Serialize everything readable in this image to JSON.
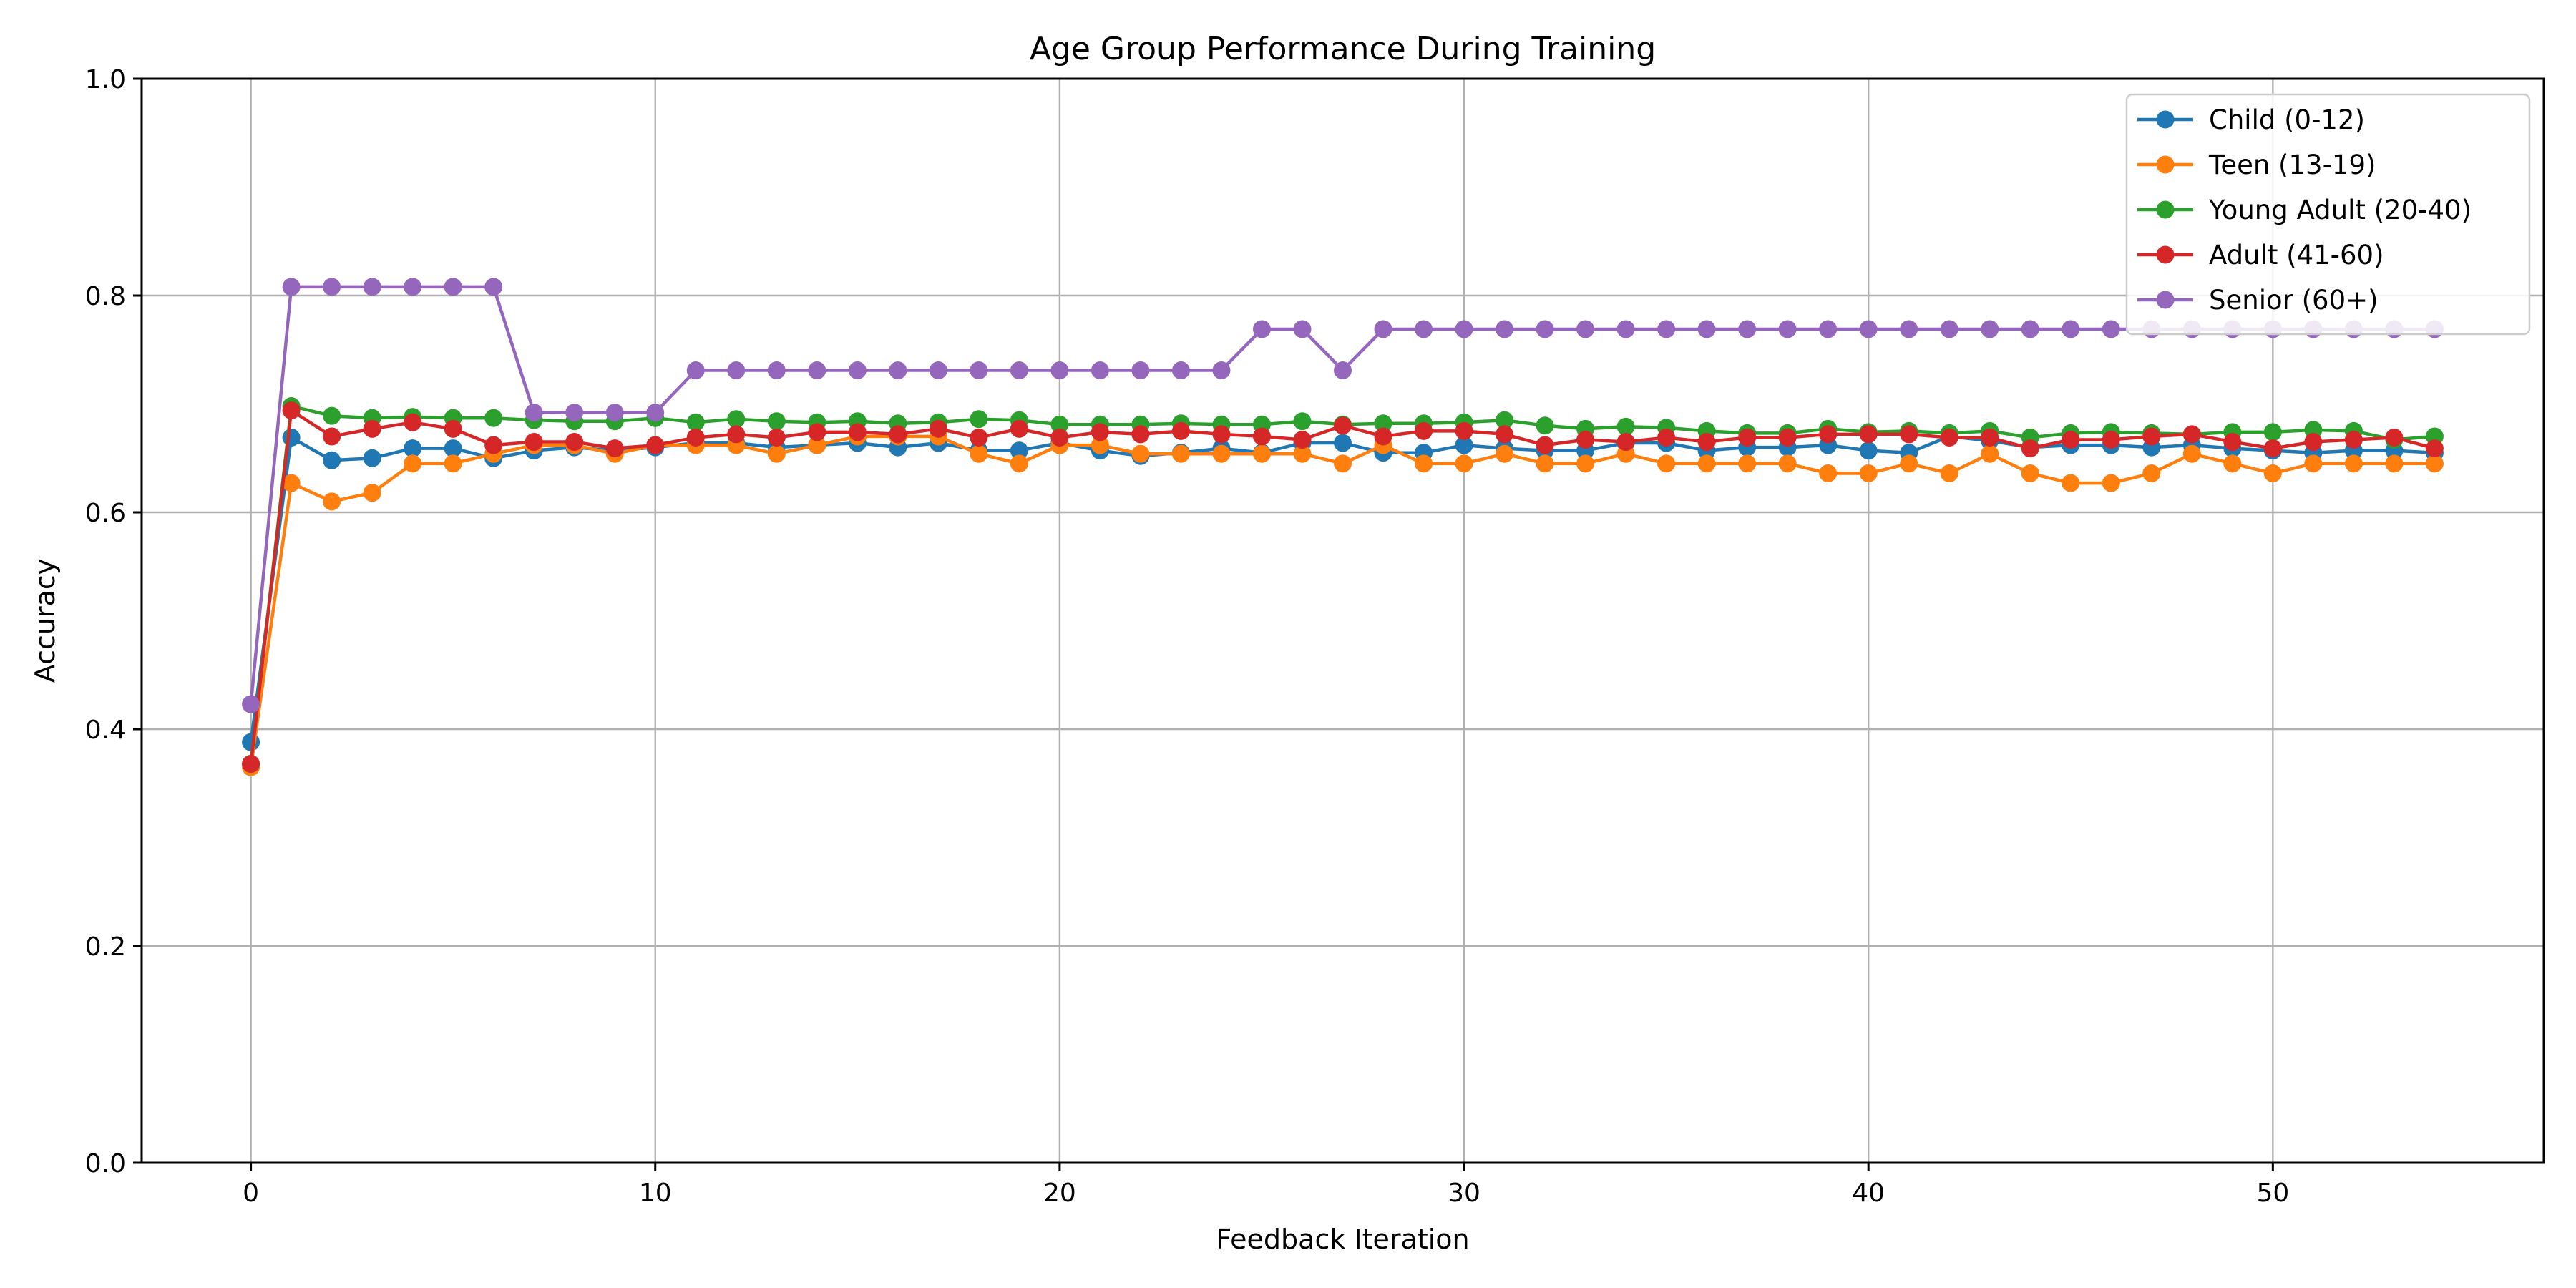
{
  "chart_data": {
    "type": "line",
    "title": "Age Group Performance During Training",
    "xlabel": "Feedback Iteration",
    "ylabel": "Accuracy",
    "xlim": [
      -2.7,
      56.7
    ],
    "ylim": [
      0,
      1.0
    ],
    "xticks": [
      0,
      10,
      20,
      30,
      40,
      50
    ],
    "yticks": [
      0.0,
      0.2,
      0.4,
      0.6,
      0.8,
      1.0
    ],
    "grid": true,
    "legend_position": "top-right",
    "markers": "circle",
    "x": [
      0,
      1,
      2,
      3,
      4,
      5,
      6,
      7,
      8,
      9,
      10,
      11,
      12,
      13,
      14,
      15,
      16,
      17,
      18,
      19,
      20,
      21,
      22,
      23,
      24,
      25,
      26,
      27,
      28,
      29,
      30,
      31,
      32,
      33,
      34,
      35,
      36,
      37,
      38,
      39,
      40,
      41,
      42,
      43,
      44,
      45,
      46,
      47,
      48,
      49,
      50,
      51,
      52,
      53,
      54
    ],
    "series": [
      {
        "name": "Child (0-12)",
        "color": "#1f77b4",
        "values": [
          0.388,
          0.669,
          0.648,
          0.65,
          0.659,
          0.659,
          0.65,
          0.657,
          0.66,
          0.657,
          0.66,
          0.664,
          0.664,
          0.66,
          0.662,
          0.664,
          0.66,
          0.664,
          0.657,
          0.657,
          0.664,
          0.657,
          0.652,
          0.655,
          0.659,
          0.655,
          0.664,
          0.664,
          0.655,
          0.655,
          0.662,
          0.659,
          0.657,
          0.657,
          0.664,
          0.664,
          0.657,
          0.66,
          0.66,
          0.662,
          0.657,
          0.655,
          0.67,
          0.666,
          0.66,
          0.662,
          0.662,
          0.66,
          0.662,
          0.659,
          0.657,
          0.655,
          0.657,
          0.657,
          0.655
        ]
      },
      {
        "name": "Teen (13-19)",
        "color": "#ff7f0e",
        "values": [
          0.365,
          0.627,
          0.61,
          0.618,
          0.645,
          0.645,
          0.654,
          0.662,
          0.662,
          0.654,
          0.662,
          0.662,
          0.662,
          0.654,
          0.662,
          0.67,
          0.67,
          0.67,
          0.654,
          0.645,
          0.662,
          0.662,
          0.654,
          0.654,
          0.654,
          0.654,
          0.654,
          0.645,
          0.662,
          0.645,
          0.645,
          0.654,
          0.645,
          0.645,
          0.654,
          0.645,
          0.645,
          0.645,
          0.645,
          0.636,
          0.636,
          0.645,
          0.636,
          0.654,
          0.636,
          0.627,
          0.627,
          0.636,
          0.654,
          0.645,
          0.636,
          0.645,
          0.645,
          0.645,
          0.645
        ]
      },
      {
        "name": "Young Adult (20-40)",
        "color": "#2ca02c",
        "values": [
          0.368,
          0.698,
          0.689,
          0.687,
          0.688,
          0.687,
          0.687,
          0.685,
          0.684,
          0.684,
          0.687,
          0.683,
          0.686,
          0.684,
          0.683,
          0.684,
          0.682,
          0.683,
          0.686,
          0.685,
          0.681,
          0.681,
          0.681,
          0.682,
          0.681,
          0.681,
          0.684,
          0.681,
          0.682,
          0.682,
          0.683,
          0.685,
          0.68,
          0.677,
          0.679,
          0.678,
          0.675,
          0.673,
          0.673,
          0.677,
          0.674,
          0.675,
          0.673,
          0.675,
          0.669,
          0.673,
          0.674,
          0.673,
          0.672,
          0.674,
          0.674,
          0.676,
          0.675,
          0.667,
          0.67
        ]
      },
      {
        "name": "Adult (41-60)",
        "color": "#d62728",
        "values": [
          0.368,
          0.694,
          0.67,
          0.677,
          0.683,
          0.677,
          0.662,
          0.665,
          0.665,
          0.659,
          0.662,
          0.669,
          0.672,
          0.669,
          0.674,
          0.674,
          0.672,
          0.677,
          0.669,
          0.677,
          0.669,
          0.674,
          0.672,
          0.675,
          0.672,
          0.67,
          0.667,
          0.68,
          0.67,
          0.675,
          0.675,
          0.672,
          0.662,
          0.667,
          0.665,
          0.669,
          0.665,
          0.669,
          0.669,
          0.672,
          0.672,
          0.672,
          0.669,
          0.669,
          0.659,
          0.667,
          0.667,
          0.67,
          0.672,
          0.665,
          0.659,
          0.665,
          0.667,
          0.669,
          0.659
        ]
      },
      {
        "name": "Senior (60+)",
        "color": "#9467bd",
        "values": [
          0.423,
          0.808,
          0.808,
          0.808,
          0.808,
          0.808,
          0.808,
          0.692,
          0.692,
          0.692,
          0.692,
          0.731,
          0.731,
          0.731,
          0.731,
          0.731,
          0.731,
          0.731,
          0.731,
          0.731,
          0.731,
          0.731,
          0.731,
          0.731,
          0.731,
          0.769,
          0.769,
          0.731,
          0.769,
          0.769,
          0.769,
          0.769,
          0.769,
          0.769,
          0.769,
          0.769,
          0.769,
          0.769,
          0.769,
          0.769,
          0.769,
          0.769,
          0.769,
          0.769,
          0.769,
          0.769,
          0.769,
          0.769,
          0.769,
          0.769,
          0.769,
          0.769,
          0.769,
          0.769,
          0.769
        ]
      }
    ]
  }
}
